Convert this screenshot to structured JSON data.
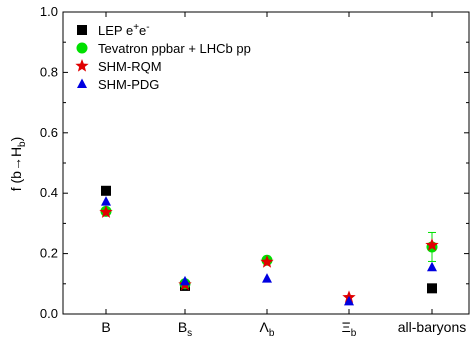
{
  "chart_data": {
    "type": "scatter",
    "ylabel_parts": {
      "main": "f (b→H",
      "sub": "b",
      "close": ")"
    },
    "ylim": [
      0.0,
      1.0
    ],
    "yticks": [
      "0.0",
      "0.2",
      "0.4",
      "0.6",
      "0.8",
      "1.0"
    ],
    "ytick_values": [
      0.0,
      0.2,
      0.4,
      0.6,
      0.8,
      1.0
    ],
    "categories": [
      {
        "main": "B",
        "sub": ""
      },
      {
        "main": "B",
        "sub": "s"
      },
      {
        "main": "Λ",
        "sub": "b"
      },
      {
        "main": "Ξ",
        "sub": "b"
      },
      {
        "main": "all-baryons",
        "sub": ""
      }
    ],
    "legend_position": "top-left",
    "series": [
      {
        "name_parts": [
          "LEP e",
          "+",
          "e",
          "-"
        ],
        "marker": "square",
        "color": "#000000",
        "values": [
          0.408,
          0.093,
          null,
          null,
          0.085
        ]
      },
      {
        "name": "Tevatron ppbar + LHCb pp",
        "marker": "circle",
        "color": "#00e000",
        "values": [
          0.34,
          0.1,
          0.178,
          null,
          0.222
        ],
        "errors": [
          null,
          null,
          null,
          null,
          0.048
        ]
      },
      {
        "name": "SHM-RQM",
        "marker": "star",
        "color": "#e00000",
        "values": [
          0.337,
          0.097,
          0.172,
          0.055,
          0.228
        ]
      },
      {
        "name": "SHM-PDG",
        "marker": "triangle",
        "color": "#0000e0",
        "values": [
          0.372,
          0.108,
          0.117,
          0.042,
          0.155
        ]
      }
    ],
    "grid": false
  }
}
